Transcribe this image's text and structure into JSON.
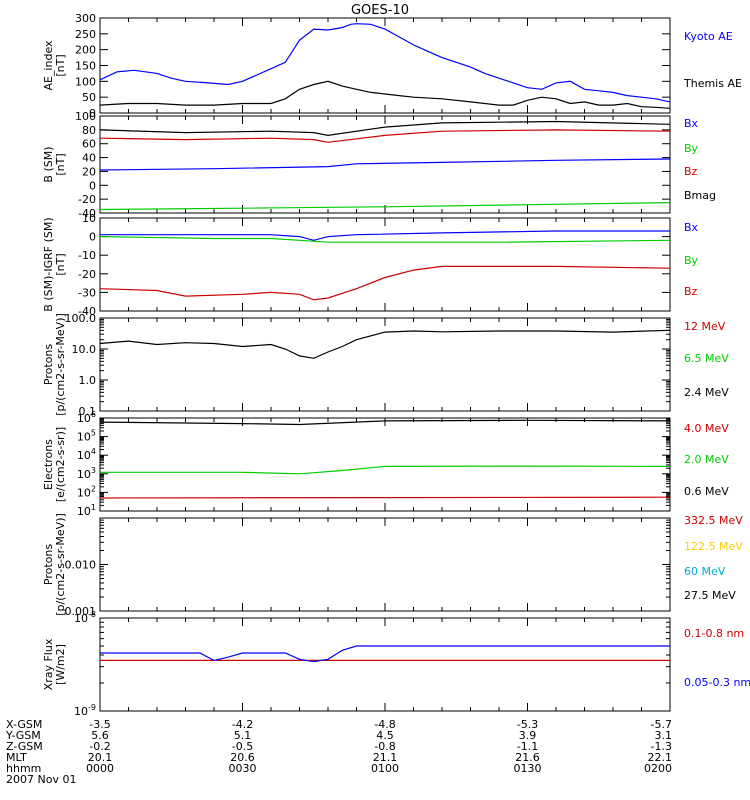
{
  "title": "GOES-10",
  "chart_data": [
    {
      "type": "line",
      "id": "ae",
      "ylabel": "AE_index\n[nT]",
      "ylim": [
        0,
        300
      ],
      "yscale": "linear",
      "yticks": [
        0,
        50,
        100,
        150,
        200,
        250,
        300
      ],
      "ytick_labels": [
        "0",
        "50",
        "100",
        "150",
        "200",
        "250",
        "300"
      ],
      "series": [
        {
          "name": "Kyoto AE",
          "color": "#0000ff",
          "x": [
            0,
            6,
            12,
            20,
            25,
            30,
            38,
            45,
            50,
            55,
            60,
            65,
            70,
            75,
            80,
            85,
            88,
            90,
            95,
            100,
            105,
            110,
            115,
            120,
            125,
            130,
            135,
            140,
            145,
            150,
            155,
            160,
            165,
            170,
            175,
            180,
            185,
            190,
            195,
            200
          ],
          "y": [
            105,
            130,
            135,
            125,
            110,
            100,
            95,
            90,
            100,
            120,
            140,
            160,
            230,
            265,
            262,
            270,
            280,
            282,
            280,
            265,
            240,
            215,
            195,
            175,
            160,
            145,
            125,
            110,
            95,
            80,
            75,
            95,
            100,
            75,
            70,
            65,
            55,
            50,
            45,
            35
          ]
        },
        {
          "name": "Themis AE",
          "color": "#000000",
          "x": [
            0,
            10,
            20,
            30,
            40,
            50,
            60,
            65,
            70,
            75,
            80,
            85,
            90,
            95,
            100,
            105,
            110,
            120,
            130,
            140,
            145,
            150,
            155,
            160,
            165,
            170,
            175,
            180,
            185,
            190,
            195,
            200
          ],
          "y": [
            25,
            30,
            30,
            25,
            25,
            30,
            30,
            45,
            75,
            90,
            100,
            85,
            75,
            65,
            60,
            55,
            50,
            45,
            35,
            25,
            25,
            40,
            50,
            45,
            30,
            35,
            25,
            25,
            30,
            20,
            18,
            15
          ]
        }
      ]
    },
    {
      "type": "line",
      "id": "bsm",
      "ylabel": "B (SM)\n[nT]",
      "ylim": [
        -40,
        100
      ],
      "yscale": "linear",
      "yticks": [
        -40,
        -20,
        0,
        20,
        40,
        60,
        80,
        100
      ],
      "ytick_labels": [
        "-40",
        "-20",
        "0",
        "20",
        "40",
        "60",
        "80",
        "100"
      ],
      "series": [
        {
          "name": "Bx",
          "color": "#0000ff",
          "x": [
            0,
            40,
            80,
            90,
            120,
            160,
            200
          ],
          "y": [
            22,
            24,
            27,
            31,
            33,
            36,
            38
          ]
        },
        {
          "name": "By",
          "color": "#00cc00",
          "x": [
            0,
            50,
            100,
            150,
            200
          ],
          "y": [
            -35,
            -33,
            -31,
            -28,
            -25
          ]
        },
        {
          "name": "Bz",
          "color": "#cc0000",
          "x": [
            0,
            30,
            60,
            75,
            80,
            100,
            120,
            160,
            200
          ],
          "y": [
            68,
            66,
            68,
            66,
            62,
            72,
            78,
            80,
            78
          ]
        },
        {
          "name": "Bmag",
          "color": "#000000",
          "x": [
            0,
            30,
            60,
            75,
            80,
            100,
            120,
            160,
            200
          ],
          "y": [
            80,
            76,
            78,
            76,
            72,
            84,
            90,
            92,
            88
          ]
        }
      ]
    },
    {
      "type": "line",
      "id": "bdiff",
      "ylabel": "B (SM)-IGRF (SM)\n[nT]",
      "ylim": [
        -40,
        10
      ],
      "yscale": "linear",
      "yticks": [
        -40,
        -30,
        -20,
        -10,
        0,
        10
      ],
      "ytick_labels": [
        "-40",
        "-30",
        "-20",
        "-10",
        "0",
        "10"
      ],
      "series": [
        {
          "name": "Bx",
          "color": "#0000ff",
          "x": [
            0,
            40,
            60,
            70,
            75,
            80,
            90,
            120,
            160,
            200
          ],
          "y": [
            1,
            1,
            1,
            0,
            -2,
            0,
            1,
            2,
            3,
            3
          ]
        },
        {
          "name": "By",
          "color": "#00cc00",
          "x": [
            0,
            40,
            60,
            70,
            80,
            100,
            140,
            200
          ],
          "y": [
            0,
            -1,
            -1,
            -2,
            -3,
            -3,
            -3,
            -2
          ]
        },
        {
          "name": "Bz",
          "color": "#cc0000",
          "x": [
            0,
            20,
            30,
            50,
            60,
            70,
            75,
            80,
            90,
            100,
            110,
            120,
            140,
            160,
            200
          ],
          "y": [
            -28,
            -29,
            -32,
            -31,
            -30,
            -31,
            -34,
            -33,
            -28,
            -22,
            -18,
            -16,
            -16,
            -16,
            -17
          ]
        }
      ]
    },
    {
      "type": "line",
      "id": "protons1",
      "ylabel": "Protons\n[p/(cm2-s-sr-MeV)]",
      "ylim": [
        0.1,
        100
      ],
      "yscale": "log",
      "yticks": [
        0.1,
        1,
        10,
        100
      ],
      "ytick_labels": [
        "0.1",
        "1.0",
        "10.0",
        "100.0"
      ],
      "series": [
        {
          "name": "12 MeV",
          "color": "#cc0000",
          "x": [],
          "y": []
        },
        {
          "name": "6.5 MeV",
          "color": "#00cc00",
          "x": [],
          "y": []
        },
        {
          "name": "2.4 MeV",
          "color": "#000000",
          "x": [
            0,
            10,
            20,
            30,
            40,
            50,
            60,
            65,
            70,
            75,
            80,
            85,
            90,
            100,
            110,
            120,
            140,
            160,
            180,
            200
          ],
          "y": [
            15,
            18,
            14,
            16,
            15,
            12,
            14,
            10,
            6,
            5,
            8,
            12,
            20,
            35,
            38,
            36,
            38,
            38,
            35,
            40
          ]
        }
      ]
    },
    {
      "type": "line",
      "id": "electrons",
      "ylabel": "Electrons\n[e/(cm2-s-sr)]",
      "ylim": [
        10,
        1000000
      ],
      "yscale": "log",
      "yticks": [
        10,
        100,
        1000,
        10000,
        100000,
        1000000
      ],
      "ytick_labels": [
        "10^1",
        "10^2",
        "10^3",
        "10^4",
        "10^5",
        "10^6"
      ],
      "series": [
        {
          "name": "4.0 MeV",
          "color": "#cc0000",
          "x": [
            0,
            200
          ],
          "y": [
            50,
            55
          ]
        },
        {
          "name": "2.0 MeV",
          "color": "#00cc00",
          "x": [
            0,
            50,
            70,
            85,
            100,
            150,
            200
          ],
          "y": [
            1200,
            1200,
            1000,
            1500,
            2500,
            2600,
            2500
          ]
        },
        {
          "name": "0.6 MeV",
          "color": "#000000",
          "x": [
            0,
            50,
            70,
            100,
            150,
            200
          ],
          "y": [
            600000,
            500000,
            450000,
            700000,
            750000,
            700000
          ]
        }
      ]
    },
    {
      "type": "line",
      "id": "protons2",
      "ylabel": "Protons\n[p/(cm2-s-sr-MeV)]",
      "ylim": [
        0.001,
        0.1
      ],
      "yscale": "log",
      "yticks": [
        0.001,
        0.01
      ],
      "ytick_labels": [
        "0.001",
        "0.010"
      ],
      "series": [
        {
          "name": "332.5 MeV",
          "color": "#cc0000",
          "x": [],
          "y": []
        },
        {
          "name": "122.5 MeV",
          "color": "#ffcc00",
          "x": [],
          "y": []
        },
        {
          "name": "60 MeV",
          "color": "#00aacc",
          "x": [],
          "y": []
        },
        {
          "name": "27.5 MeV",
          "color": "#000000",
          "x": [],
          "y": []
        }
      ]
    },
    {
      "type": "line",
      "id": "xray",
      "ylabel": "Xray Flux\n[W/m2]",
      "ylim": [
        1e-09,
        1e-08
      ],
      "yscale": "log",
      "yticks": [
        1e-09,
        1e-08
      ],
      "ytick_labels": [
        "10^-9",
        "10^-8"
      ],
      "series": [
        {
          "name": "0.1-0.8 nm",
          "color": "#cc0000",
          "x": [
            0,
            200
          ],
          "y": [
            3.5e-09,
            3.5e-09
          ]
        },
        {
          "name": "0.05-0.3 nm",
          "color": "#0000ff",
          "x": [
            0,
            35,
            40,
            45,
            50,
            65,
            70,
            75,
            80,
            85,
            90,
            200
          ],
          "y": [
            4.2e-09,
            4.2e-09,
            3.5e-09,
            3.8e-09,
            4.2e-09,
            4.2e-09,
            3.6e-09,
            3.4e-09,
            3.6e-09,
            4.5e-09,
            5e-09,
            5e-09
          ]
        }
      ]
    }
  ],
  "xaxis": {
    "row_labels": [
      "X-GSM",
      "Y-GSM",
      "Z-GSM",
      "MLT",
      "hhmm"
    ],
    "ticks": [
      {
        "x": 0,
        "values": [
          "-3.5",
          "5.6",
          "-0.2",
          "20.1",
          "0000"
        ]
      },
      {
        "x": 50,
        "values": [
          "-4.2",
          "5.1",
          "-0.5",
          "20.6",
          "0030"
        ]
      },
      {
        "x": 100,
        "values": [
          "-4.8",
          "4.5",
          "-0.8",
          "21.1",
          "0100"
        ]
      },
      {
        "x": 150,
        "values": [
          "-5.3",
          "3.9",
          "-1.1",
          "21.6",
          "0130"
        ]
      },
      {
        "x": 200,
        "values": [
          "-5.7",
          "3.1",
          "-1.3",
          "22.1",
          "0200"
        ]
      }
    ],
    "date_label": "2007 Nov 01"
  }
}
